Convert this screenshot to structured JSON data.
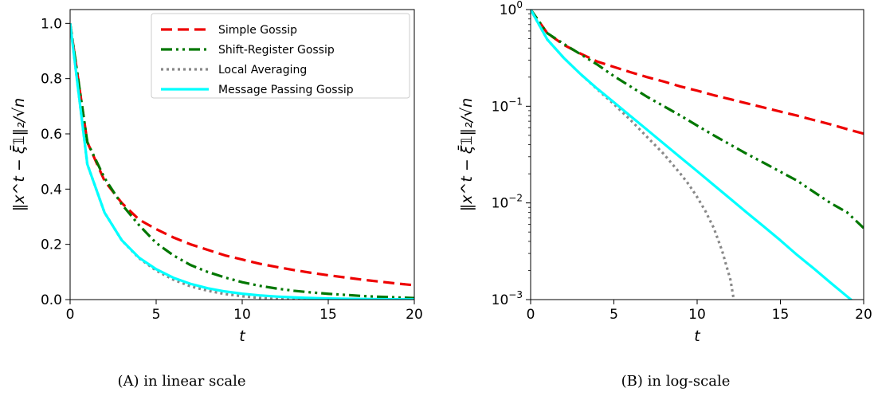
{
  "chart_data": [
    {
      "type": "line",
      "caption": "(A) in linear scale",
      "xlabel": "t",
      "ylabel": "‖x^t − ξ̄𝟙‖₂/√n",
      "xlim": [
        0,
        20
      ],
      "ylim": [
        0,
        1.05
      ],
      "xticks": [
        "0",
        "5",
        "10",
        "15",
        "20"
      ],
      "yticks": [
        "0.0",
        "0.2",
        "0.4",
        "0.6",
        "0.8",
        "1.0"
      ],
      "legend_position": "top-right",
      "x": [
        0,
        1,
        2,
        3,
        4,
        5,
        6,
        7,
        8,
        9,
        10,
        11,
        12,
        13,
        14,
        15,
        16,
        17,
        18,
        19,
        20
      ],
      "series": [
        {
          "name": "Simple Gossip",
          "color": "#ee0000",
          "dash": "14,7",
          "values": [
            1.0,
            0.57,
            0.43,
            0.35,
            0.29,
            0.255,
            0.225,
            0.2,
            0.18,
            0.16,
            0.145,
            0.13,
            0.118,
            0.107,
            0.097,
            0.088,
            0.08,
            0.072,
            0.065,
            0.058,
            0.052
          ]
        },
        {
          "name": "Shift-Register Gossip",
          "color": "#007700",
          "dash": "14,5,3,5,3,5",
          "values": [
            1.0,
            0.57,
            0.44,
            0.345,
            0.27,
            0.205,
            0.16,
            0.125,
            0.1,
            0.08,
            0.063,
            0.05,
            0.04,
            0.032,
            0.026,
            0.021,
            0.017,
            0.013,
            0.01,
            0.008,
            0.0055
          ]
        },
        {
          "name": "Local Averaging",
          "color": "#888888",
          "dash": "3,4",
          "values": [
            1.0,
            0.49,
            0.315,
            0.215,
            0.15,
            0.105,
            0.072,
            0.048,
            0.032,
            0.02,
            0.012,
            0.006,
            0.002,
            0.0005,
            0.0001,
            5e-05,
            2e-05,
            1e-05,
            1e-05,
            1e-05,
            1e-05
          ]
        },
        {
          "name": "Message Passing Gossip",
          "color": "#00ffff",
          "dash": "",
          "values": [
            1.0,
            0.49,
            0.315,
            0.215,
            0.152,
            0.11,
            0.079,
            0.057,
            0.041,
            0.0295,
            0.0213,
            0.0153,
            0.011,
            0.0079,
            0.0057,
            0.0041,
            0.0029,
            0.0021,
            0.0015,
            0.00108,
            0.00078
          ]
        }
      ]
    },
    {
      "type": "line",
      "caption": "(B) in log-scale",
      "xlabel": "t",
      "ylabel": "‖x^t − ξ̄𝟙‖₂/√n",
      "xlim": [
        0,
        20
      ],
      "ylim": [
        0.001,
        1
      ],
      "yscale": "log",
      "xticks": [
        "0",
        "5",
        "10",
        "15",
        "20"
      ],
      "yticks": [
        {
          "base": "10",
          "exp": "0",
          "value": 1
        },
        {
          "base": "10",
          "exp": "−1",
          "value": 0.1
        },
        {
          "base": "10",
          "exp": "−2",
          "value": 0.01
        },
        {
          "base": "10",
          "exp": "−3",
          "value": 0.001
        }
      ],
      "x": [
        0,
        1,
        2,
        3,
        4,
        5,
        6,
        7,
        8,
        9,
        10,
        11,
        12,
        13,
        14,
        15,
        16,
        17,
        18,
        19,
        20
      ],
      "series": [
        {
          "name": "Simple Gossip",
          "color": "#ee0000",
          "dash": "14,7",
          "values": [
            1.0,
            0.57,
            0.43,
            0.35,
            0.29,
            0.255,
            0.225,
            0.2,
            0.18,
            0.16,
            0.145,
            0.13,
            0.118,
            0.107,
            0.097,
            0.088,
            0.08,
            0.072,
            0.065,
            0.058,
            0.052
          ]
        },
        {
          "name": "Shift-Register Gossip",
          "color": "#007700",
          "dash": "14,5,3,5,3,5",
          "values": [
            1.0,
            0.57,
            0.44,
            0.345,
            0.27,
            0.205,
            0.16,
            0.125,
            0.1,
            0.08,
            0.063,
            0.05,
            0.04,
            0.032,
            0.026,
            0.021,
            0.017,
            0.013,
            0.01,
            0.008,
            0.0055
          ]
        },
        {
          "name": "Local Averaging",
          "color": "#888888",
          "dash": "3,4",
          "x": [
            0,
            1,
            2,
            3,
            4,
            5,
            6,
            7,
            8,
            9,
            9.5,
            10,
            10.5,
            11,
            11.5,
            12,
            12.2
          ],
          "values": [
            1.0,
            0.49,
            0.315,
            0.215,
            0.15,
            0.105,
            0.072,
            0.048,
            0.032,
            0.02,
            0.0155,
            0.0115,
            0.0082,
            0.0055,
            0.0032,
            0.0016,
            0.001
          ]
        },
        {
          "name": "Message Passing Gossip",
          "color": "#00ffff",
          "dash": "",
          "values": [
            1.0,
            0.49,
            0.315,
            0.215,
            0.152,
            0.11,
            0.079,
            0.057,
            0.041,
            0.0295,
            0.0213,
            0.0153,
            0.011,
            0.0079,
            0.0057,
            0.0041,
            0.0029,
            0.0021,
            0.0015,
            0.00108,
            0.00078
          ]
        }
      ]
    }
  ]
}
